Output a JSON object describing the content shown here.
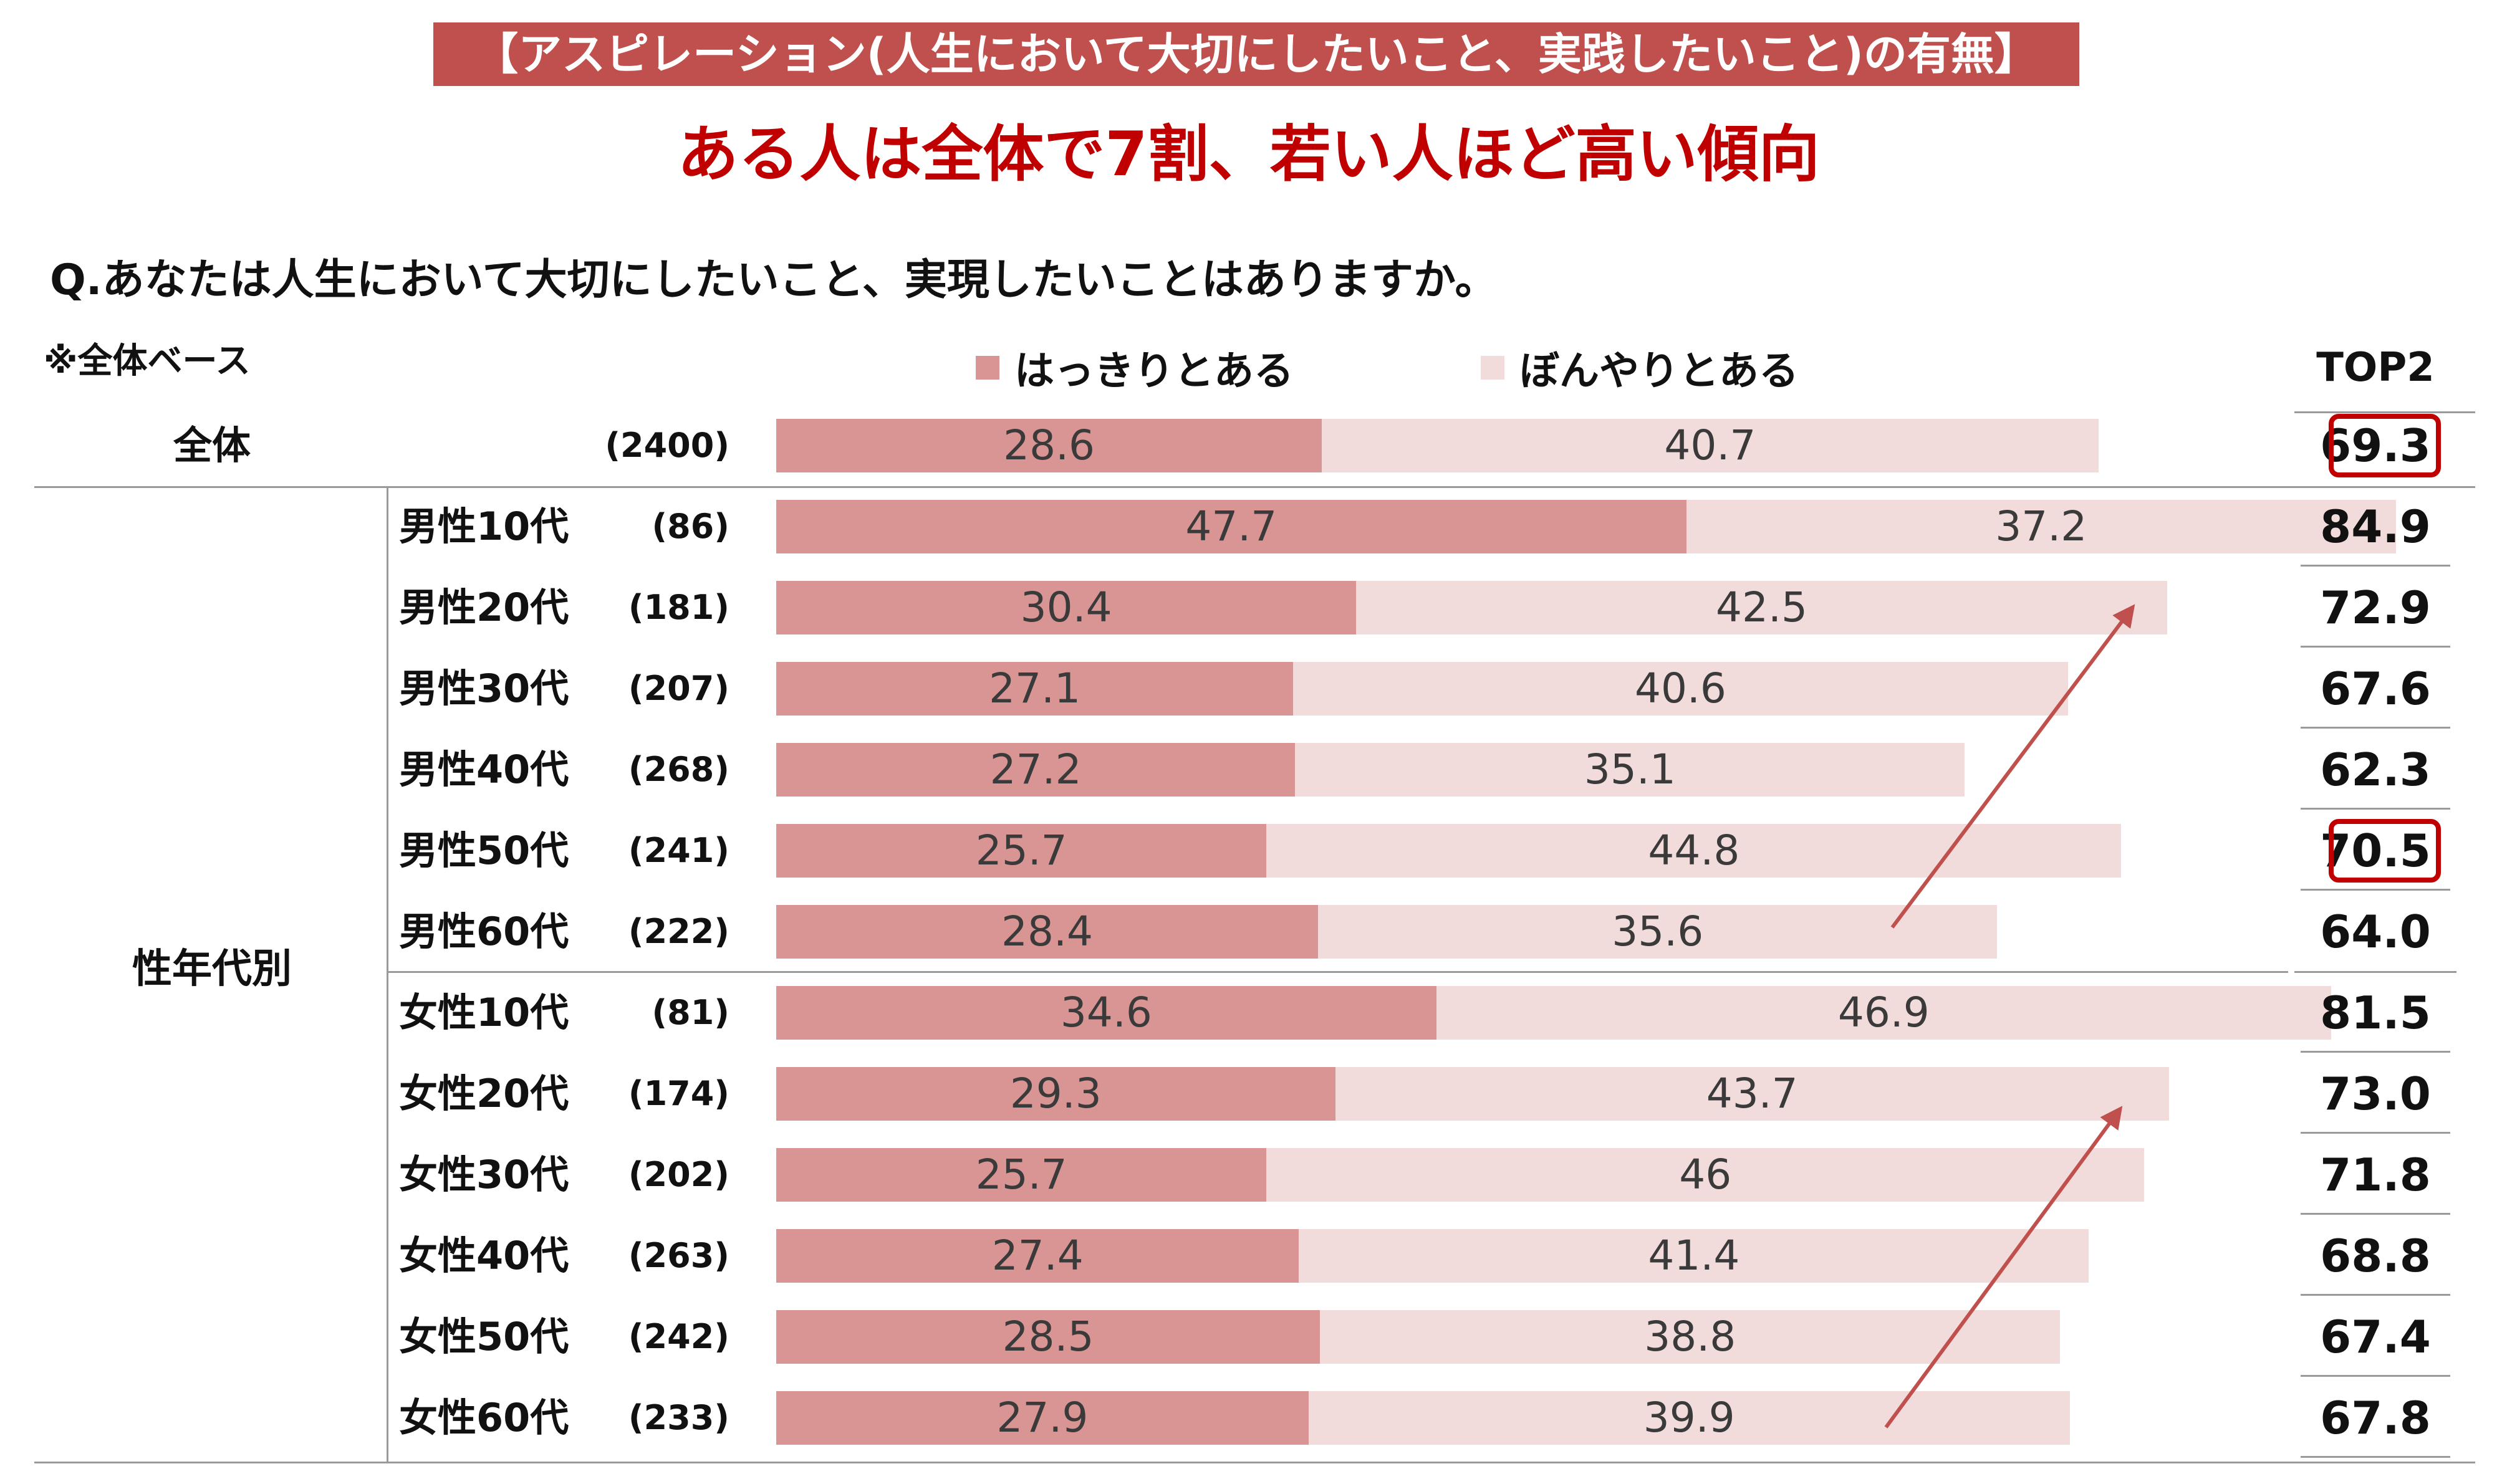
{
  "banner": "【アスピレーション(人生において大切にしたいこと、実践したいこと)の有無】",
  "headline": "ある人は全体で7割、若い人ほど高い傾向",
  "question": "Q.あなたは人生において大切にしたいこと、実現したいことはありますか。",
  "base_note": "※全体ベース",
  "colors": {
    "banner": "#c0504d",
    "headline": "#c00000",
    "series_clear": "#d99594",
    "series_vague": "#f2dcdb",
    "highlight": "#c00000",
    "arrow": "#c0504d"
  },
  "chart_data": {
    "type": "bar",
    "orientation": "horizontal",
    "stacked": true,
    "legend_position": "top",
    "series": [
      {
        "name": "はっきりとある",
        "values": [
          28.6,
          47.7,
          30.4,
          27.1,
          27.2,
          25.7,
          28.4,
          34.6,
          29.3,
          25.7,
          27.4,
          28.5,
          27.9
        ]
      },
      {
        "name": "ぼんやりとある",
        "values": [
          40.7,
          37.2,
          42.5,
          40.6,
          35.1,
          44.8,
          35.6,
          46.9,
          43.7,
          46.0,
          41.4,
          38.8,
          39.9
        ]
      }
    ],
    "categories": [
      "全体",
      "男性10代",
      "男性20代",
      "男性30代",
      "男性40代",
      "男性50代",
      "男性60代",
      "女性10代",
      "女性20代",
      "女性30代",
      "女性40代",
      "女性50代",
      "女性60代"
    ],
    "group_label": "性年代別",
    "sample_sizes": [
      "(2400)",
      "(86)",
      "(181)",
      "(207)",
      "(268)",
      "(241)",
      "(222)",
      "(81)",
      "(174)",
      "(202)",
      "(263)",
      "(242)",
      "(233)"
    ],
    "top2_header": "TOP2",
    "top2": [
      "69.3",
      "84.9",
      "72.9",
      "67.6",
      "62.3",
      "70.5",
      "64.0",
      "81.5",
      "73.0",
      "71.8",
      "68.8",
      "67.4",
      "67.8"
    ],
    "highlighted_top2": [
      "69.3",
      "70.5"
    ],
    "xlim": [
      0,
      100
    ],
    "grid": false
  }
}
